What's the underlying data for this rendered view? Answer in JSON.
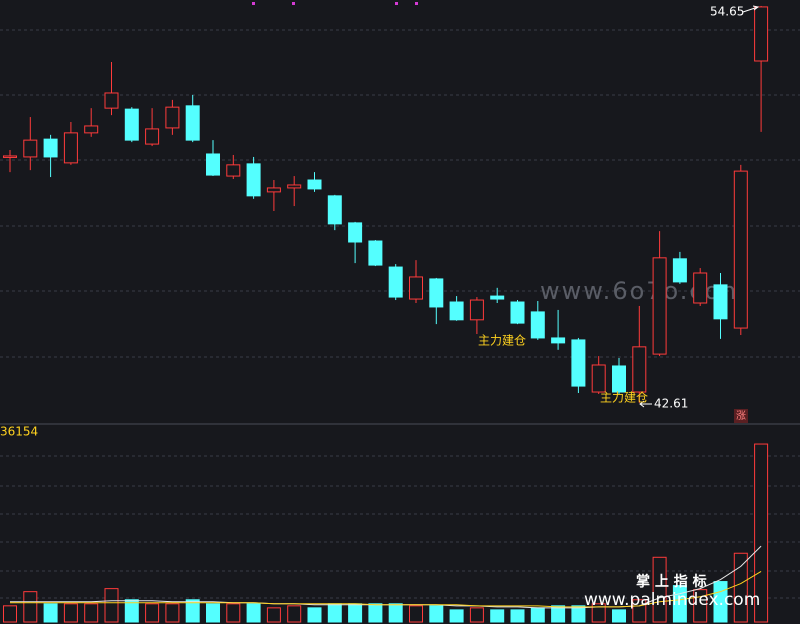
{
  "chart_data": {
    "type": "candlestick",
    "ylim": [
      41.97,
      54.83
    ],
    "open": [
      50.07,
      50.07,
      50.61,
      49.89,
      50.8,
      51.55,
      51.52,
      50.46,
      50.95,
      51.62,
      50.16,
      49.49,
      49.86,
      49.01,
      49.13,
      49.37,
      48.89,
      48.07,
      47.52,
      46.73,
      45.76,
      46.37,
      45.67,
      45.13,
      45.85,
      45.67,
      45.37,
      44.58,
      44.52,
      42.94,
      43.73,
      42.94,
      44.09,
      46.98,
      45.64,
      46.19,
      44.88,
      52.98
    ],
    "close": [
      50.1,
      50.58,
      50.07,
      50.8,
      51.01,
      52.01,
      50.58,
      50.92,
      51.58,
      50.58,
      49.52,
      49.83,
      48.89,
      49.13,
      49.22,
      49.1,
      48.04,
      47.49,
      46.79,
      45.82,
      46.43,
      45.52,
      45.13,
      45.73,
      45.76,
      45.03,
      44.58,
      44.43,
      43.12,
      43.76,
      42.94,
      44.31,
      47.01,
      46.28,
      46.55,
      45.16,
      49.64,
      54.62
    ],
    "high": [
      50.28,
      51.28,
      50.74,
      51.13,
      51.55,
      52.95,
      51.58,
      51.55,
      51.8,
      51.95,
      50.58,
      50.13,
      50.07,
      49.37,
      49.49,
      49.61,
      48.92,
      48.1,
      47.55,
      46.82,
      46.94,
      46.4,
      45.85,
      45.82,
      46.1,
      45.73,
      45.7,
      45.43,
      44.58,
      44.03,
      43.97,
      45.55,
      47.82,
      47.19,
      46.7,
      46.55,
      49.83,
      54.65
    ],
    "low": [
      49.61,
      49.67,
      49.46,
      49.83,
      50.68,
      51.34,
      50.52,
      50.4,
      50.74,
      50.52,
      49.49,
      49.4,
      48.8,
      48.43,
      48.58,
      49.01,
      47.85,
      46.85,
      46.76,
      45.73,
      45.64,
      45.0,
      45.1,
      44.7,
      45.64,
      45.0,
      44.52,
      44.22,
      42.91,
      42.88,
      42.88,
      42.61,
      44.03,
      46.22,
      45.55,
      44.55,
      44.67,
      50.83
    ],
    "up_color": "#ff3b3b",
    "down_color": "#54ffff",
    "volume": [
      16,
      30,
      18,
      18,
      18,
      33,
      22,
      18,
      18,
      22,
      18,
      18,
      18,
      14,
      16,
      14,
      18,
      18,
      18,
      18,
      16,
      16,
      12,
      14,
      12,
      12,
      14,
      16,
      16,
      18,
      12,
      22,
      64,
      36,
      32,
      40,
      68,
      176
    ],
    "vlim": [
      0,
      180
    ],
    "volume_lines": [
      {
        "color": "#e8e8e8",
        "values": [
          20,
          20,
          20,
          20,
          20,
          21,
          21,
          21,
          20,
          20,
          20,
          19,
          19,
          18,
          18,
          17,
          17,
          17,
          17,
          17,
          17,
          17,
          16,
          16,
          15,
          15,
          14,
          14,
          14,
          15,
          15,
          16,
          24,
          28,
          33,
          42,
          55,
          75
        ]
      },
      {
        "color": "#ffd21f",
        "values": [
          19,
          19,
          19,
          19,
          19,
          19,
          19,
          19,
          19,
          19,
          19,
          19,
          19,
          18,
          18,
          18,
          18,
          18,
          17,
          17,
          17,
          17,
          17,
          16,
          16,
          16,
          16,
          15,
          15,
          15,
          15,
          16,
          20,
          22,
          25,
          30,
          38,
          50
        ]
      }
    ],
    "high_label": "54.65",
    "low_label": "42.61",
    "annotations": [
      "主力建仓",
      "主力建仓"
    ],
    "badge": "涨",
    "volume_label": "36154",
    "watermarks": [
      "www.6o7o.com",
      "掌 上 指 标",
      "www.palmindex.com"
    ]
  }
}
